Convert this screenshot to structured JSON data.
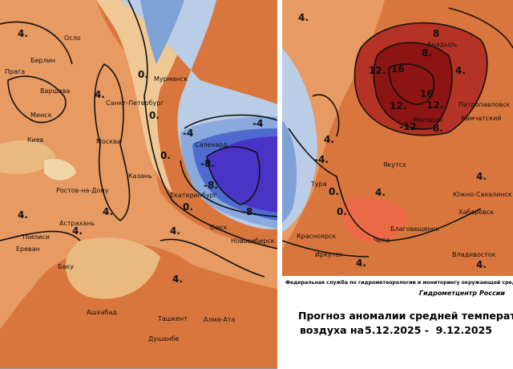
{
  "left_map": {
    "cities": [
      "Осло",
      "Берлин",
      "Прага",
      "Варшава",
      "Минск",
      "Киев",
      "Москва",
      "Санкт-Петербург",
      "Мурманск",
      "Казань",
      "Ростов-на-Дону",
      "Екатеринбург",
      "Салехард",
      "Астрахань",
      "Тбилиси",
      "Ереван",
      "Баку",
      "Омск",
      "Новосибирск",
      "Ашхабад",
      "Ташкент",
      "Алма-Ата",
      "Душанбе"
    ],
    "contour_labels": [
      "4.",
      "4.",
      "4.",
      "4.",
      "0.",
      "0.",
      "-4",
      "-4",
      "-8.",
      "-8.",
      "-8.",
      "0.",
      "0.",
      "4.",
      "4.",
      "4."
    ]
  },
  "right_map": {
    "cities": [
      "Анадырь",
      "Петропавловск",
      "Камчатский",
      "Магадан",
      "Якутск",
      "Тура",
      "Южно-Сахалинск",
      "Хабаровск",
      "Благовещенск",
      "Красноярск",
      "Чита",
      "Иркутск",
      "Владивосток"
    ],
    "contour_labels": [
      "4.",
      "8",
      "8.",
      "12.",
      "16",
      "16",
      "12.",
      "12.",
      "-12.",
      "8.",
      "4.",
      "4.",
      "-4.",
      "0.",
      "4.",
      "4.",
      "4.",
      "4.",
      "0."
    ]
  },
  "footer": {
    "agency": "Федеральная служба по гидрометеорологии и мониторингу окружающей среды",
    "center": "Гидрометцентр России",
    "title_line1": "Прогноз аномалии средней температуры",
    "title_line2": "воздуха на",
    "dates": "5.12.2025 -  9.12.2025"
  }
}
